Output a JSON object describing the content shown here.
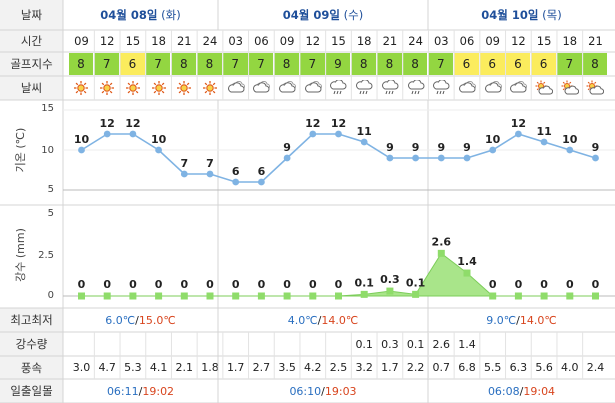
{
  "labels": {
    "date": "날짜",
    "time": "시간",
    "golf": "골프지수",
    "weather": "날씨",
    "temp_axis": "기온 (℃)",
    "rain_axis": "강수 (mm)",
    "minmax": "최고최저",
    "rainfall": "강수량",
    "wind": "풍속",
    "sun": "일출일몰"
  },
  "days": [
    {
      "date": "04월 08일",
      "weekday": "(화)",
      "min": "6.0℃",
      "max": "15.0℃",
      "sunrise": "06:11",
      "sunset": "19:02"
    },
    {
      "date": "04월 09일",
      "weekday": "(수)",
      "min": "4.0℃",
      "max": "14.0℃",
      "sunrise": "06:10",
      "sunset": "19:03"
    },
    {
      "date": "04월 10일",
      "weekday": "(목)",
      "min": "9.0℃",
      "max": "14.0℃",
      "sunrise": "06:08",
      "sunset": "19:04"
    }
  ],
  "times": [
    "09",
    "12",
    "15",
    "18",
    "21",
    "24",
    "03",
    "06",
    "09",
    "12",
    "15",
    "18",
    "21",
    "24",
    "03",
    "06",
    "09",
    "12",
    "15",
    "18",
    "21"
  ],
  "golf": [
    "8",
    "7",
    "6",
    "7",
    "8",
    "8",
    "7",
    "7",
    "8",
    "7",
    "9",
    "8",
    "8",
    "8",
    "7",
    "6",
    "6",
    "6",
    "6",
    "7",
    "8"
  ],
  "golf_colors": {
    "high": "#93d641",
    "mid": "#fbec5d"
  },
  "weather_icons": [
    "sun-icon",
    "sun-icon",
    "sun-icon",
    "sun-icon",
    "sun-icon",
    "sun-icon",
    "cloud-icon",
    "cloud-icon",
    "cloud-icon",
    "cloud-icon",
    "rain-icon",
    "rain-icon",
    "rain-icon",
    "rain-icon",
    "rain-icon",
    "cloud-icon",
    "cloud-icon",
    "cloud-icon",
    "partly-cloudy-icon",
    "partly-cloudy-icon",
    "partly-cloudy-icon"
  ],
  "rainfall": [
    "",
    "",
    "",
    "",
    "",
    "",
    "",
    "",
    "",
    "",
    "",
    "0.1",
    "0.3",
    "0.1",
    "2.6",
    "1.4",
    "",
    "",
    "",
    "",
    ""
  ],
  "wind": [
    "3.0",
    "4.7",
    "5.3",
    "4.1",
    "2.1",
    "1.8",
    "1.7",
    "2.7",
    "3.5",
    "4.2",
    "2.5",
    "3.2",
    "1.7",
    "2.2",
    "0.7",
    "6.8",
    "5.5",
    "6.3",
    "5.6",
    "4.0",
    "2.4"
  ],
  "colors": {
    "temp_line": "#7fb3e3",
    "rain_fill": "#a9e58a",
    "rain_line": "#7ccd5a",
    "header_bg": "#f2f2f2"
  },
  "chart_data": [
    {
      "type": "line",
      "xlabel": "",
      "ylabel": "기온 (℃)",
      "ylim": [
        5,
        15
      ],
      "yticks": [
        5,
        10,
        15
      ],
      "series": [
        {
          "values": [
            10,
            12,
            12,
            10,
            7,
            7,
            6,
            6,
            9,
            12,
            12,
            11,
            9,
            9,
            9,
            9,
            10,
            12,
            11,
            10,
            9
          ]
        }
      ],
      "data_labels": [
        "10",
        "12",
        "12",
        "10",
        "7",
        "7",
        "6",
        "6",
        "9",
        "12",
        "12",
        "11",
        "9",
        "9",
        "9",
        "9",
        "10",
        "12",
        "11",
        "10",
        "9"
      ],
      "grid": true
    },
    {
      "type": "area",
      "xlabel": "",
      "ylabel": "강수 (mm)",
      "ylim": [
        0,
        5
      ],
      "yticks": [
        0,
        2.5,
        5
      ],
      "series": [
        {
          "values": [
            0,
            0,
            0,
            0,
            0,
            0,
            0,
            0,
            0,
            0,
            0,
            0.1,
            0.3,
            0.1,
            2.6,
            1.4,
            0,
            0,
            0,
            0,
            0
          ]
        }
      ],
      "data_labels": [
        "0",
        "0",
        "0",
        "0",
        "0",
        "0",
        "0",
        "0",
        "0",
        "0",
        "0",
        "0.1",
        "0.3",
        "0.1",
        "2.6",
        "1.4",
        "0",
        "0",
        "0",
        "0",
        "0"
      ],
      "grid": false
    }
  ]
}
